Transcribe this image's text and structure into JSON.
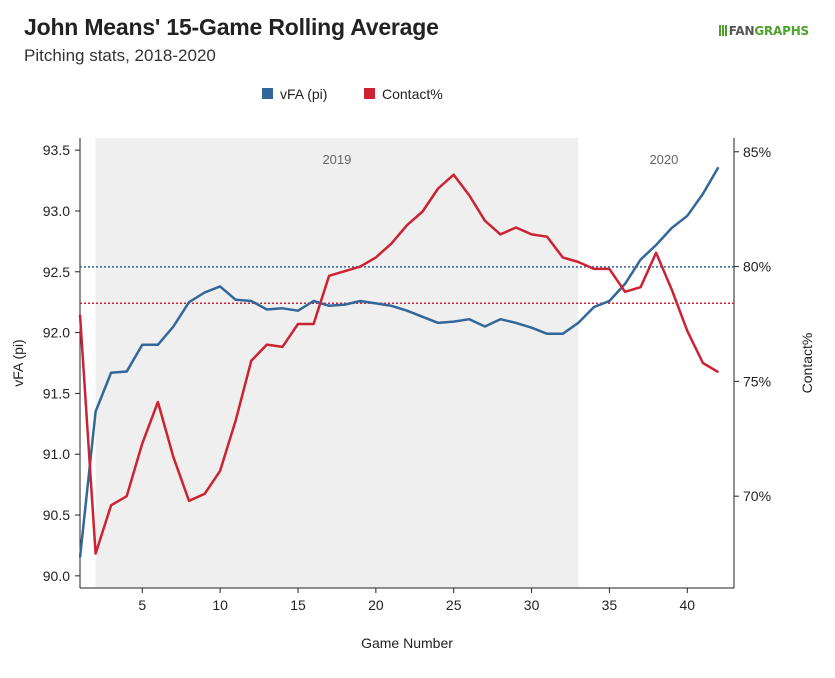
{
  "header": {
    "title": "John Means' 15-Game Rolling Average",
    "subtitle": "Pitching stats, 2018-2020",
    "logo_text_1": "FAN",
    "logo_text_2": "GRAPHS"
  },
  "colors": {
    "vfa": "#336699",
    "contact": "#cc2233",
    "shade": "#efefef"
  },
  "chart_data": {
    "type": "line",
    "xlabel": "Game Number",
    "ylabel_left": "vFA (pi)",
    "ylabel_right": "Contact%",
    "xlim": [
      1,
      43
    ],
    "ylim_left": [
      89.9,
      93.6
    ],
    "ylim_right": [
      66.0,
      85.6
    ],
    "x_ticks": [
      5,
      10,
      15,
      20,
      25,
      30,
      35,
      40
    ],
    "y_ticks_left": [
      "90.0",
      "90.5",
      "91.0",
      "91.5",
      "92.0",
      "92.5",
      "93.0",
      "93.5"
    ],
    "y_ticks_right": [
      "70%",
      "75%",
      "80%",
      "85%"
    ],
    "legend": {
      "placement": "top-center",
      "items": [
        "vFA (pi)",
        "Contact%"
      ]
    },
    "shaded_regions": [
      {
        "label": "2019",
        "x_start": 2,
        "x_end": 33
      }
    ],
    "region_labels": [
      "2019",
      "2020"
    ],
    "reference_lines": [
      {
        "series": "vFA (pi)",
        "axis": "left",
        "value": 92.54
      },
      {
        "series": "Contact%",
        "axis": "right",
        "value": 78.4
      }
    ],
    "series": [
      {
        "name": "vFA (pi)",
        "axis": "left",
        "x": [
          1,
          2,
          3,
          4,
          5,
          6,
          7,
          8,
          9,
          10,
          11,
          12,
          13,
          14,
          15,
          16,
          17,
          18,
          19,
          20,
          21,
          22,
          23,
          24,
          25,
          26,
          27,
          28,
          29,
          30,
          31,
          32,
          33,
          34,
          35,
          36,
          37,
          38,
          39,
          40,
          41,
          42
        ],
        "values": [
          90.15,
          91.35,
          91.67,
          91.68,
          91.9,
          91.9,
          92.05,
          92.25,
          92.33,
          92.38,
          92.27,
          92.26,
          92.19,
          92.2,
          92.18,
          92.26,
          92.22,
          92.23,
          92.26,
          92.24,
          92.22,
          92.18,
          92.13,
          92.08,
          92.09,
          92.11,
          92.05,
          92.11,
          92.08,
          92.04,
          91.99,
          91.99,
          92.08,
          92.21,
          92.26,
          92.4,
          92.6,
          92.72,
          92.86,
          92.96,
          93.14,
          93.36
        ]
      },
      {
        "name": "Contact%",
        "axis": "right",
        "x": [
          1,
          2,
          3,
          4,
          5,
          6,
          7,
          8,
          9,
          10,
          11,
          12,
          13,
          14,
          15,
          16,
          17,
          18,
          19,
          20,
          21,
          22,
          23,
          24,
          25,
          26,
          27,
          28,
          29,
          30,
          31,
          32,
          33,
          34,
          35,
          36,
          37,
          38,
          39,
          40,
          41,
          42
        ],
        "values": [
          77.9,
          67.5,
          69.6,
          70.0,
          72.3,
          74.1,
          71.7,
          69.8,
          70.1,
          71.1,
          73.3,
          75.9,
          76.6,
          76.5,
          77.5,
          77.5,
          79.6,
          79.8,
          80.0,
          80.4,
          81.0,
          81.8,
          82.4,
          83.4,
          84.0,
          83.1,
          82.0,
          81.4,
          81.7,
          81.4,
          81.3,
          80.4,
          80.2,
          79.9,
          79.9,
          78.9,
          79.1,
          80.6,
          79.0,
          77.2,
          75.8,
          75.4
        ]
      }
    ]
  }
}
